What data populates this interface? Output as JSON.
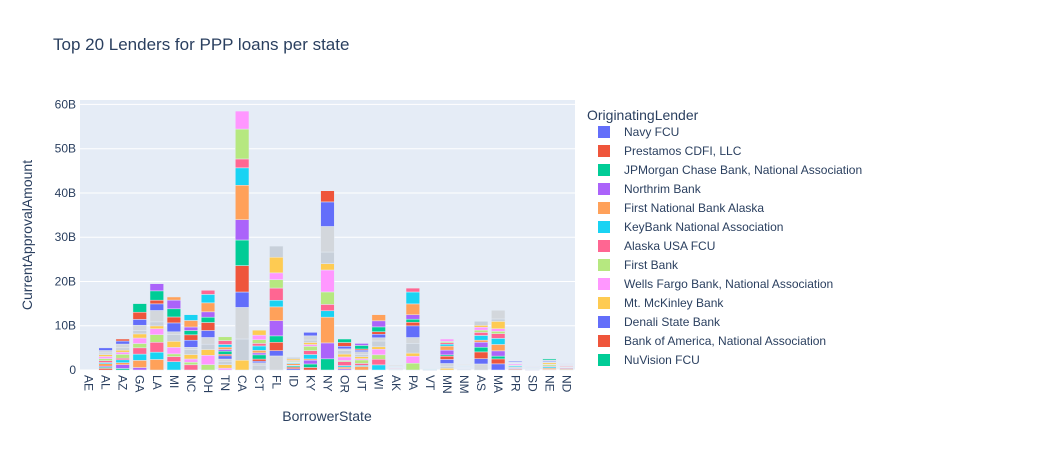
{
  "chart_data": {
    "type": "bar",
    "barmode": "stack",
    "title": "Top 20 Lenders for PPP loans per state",
    "xlabel": "BorrowerState",
    "ylabel": "CurrentApprovalAmount",
    "ylim": [
      0,
      61000000000
    ],
    "yticks": [
      0,
      10000000000,
      20000000000,
      30000000000,
      40000000000,
      50000000000,
      60000000000
    ],
    "ytick_labels": [
      "0",
      "10B",
      "20B",
      "30B",
      "40B",
      "50B",
      "60B"
    ],
    "grid": true,
    "legend": {
      "title": "OriginatingLender",
      "placement": "right"
    },
    "categories": [
      "AE",
      "AL",
      "AZ",
      "GA",
      "LA",
      "MI",
      "NC",
      "OH",
      "TN",
      "CA",
      "CT",
      "FL",
      "ID",
      "KY",
      "NY",
      "OR",
      "UT",
      "WI",
      "AK",
      "PA",
      "VT",
      "MN",
      "NM",
      "AS",
      "MA",
      "PR",
      "SD",
      "NE",
      "ND"
    ],
    "visible_tick_categories": [
      "AE",
      "AL",
      "AZ",
      "GA",
      "LA",
      "MI",
      "NC",
      "OH",
      "TN",
      "CA",
      "CT",
      "FL",
      "ID",
      "KY",
      "NY",
      "OR",
      "UT",
      "WI",
      "AK",
      "PA",
      "VT",
      "MN",
      "NM",
      "AS",
      "MA",
      "PR",
      "SD",
      "NE",
      "ND"
    ],
    "totals": [
      0,
      5000000000,
      7000000000,
      15000000000,
      19500000000,
      16500000000,
      12500000000,
      18000000000,
      7500000000,
      58500000000,
      9000000000,
      28000000000,
      3000000000,
      8500000000,
      40500000000,
      7000000000,
      6000000000,
      12500000000,
      1200000000,
      18500000000,
      400000000,
      7000000000,
      1200000000,
      11000000000,
      13500000000,
      2000000000,
      800000000,
      2500000000,
      1500000000
    ],
    "series": [
      {
        "name": "Navy FCU",
        "color": "#636efa"
      },
      {
        "name": "Prestamos CDFI, LLC",
        "color": "#EF553B"
      },
      {
        "name": "JPMorgan Chase Bank, National Association",
        "color": "#00cc96"
      },
      {
        "name": "Northrim Bank",
        "color": "#ab63fa"
      },
      {
        "name": "First National Bank Alaska",
        "color": "#FFA15A"
      },
      {
        "name": "KeyBank National Association",
        "color": "#19d3f3"
      },
      {
        "name": "Alaska USA FCU",
        "color": "#FF6692"
      },
      {
        "name": "First Bank",
        "color": "#B6E880"
      },
      {
        "name": "Wells Fargo Bank, National Association",
        "color": "#FF97FF"
      },
      {
        "name": "Mt. McKinley Bank",
        "color": "#FECB52"
      },
      {
        "name": "Denali State Bank",
        "color": "#636efa"
      },
      {
        "name": "Bank of America, National Association",
        "color": "#EF553B"
      },
      {
        "name": "NuVision FCU",
        "color": "#00cc96"
      }
    ]
  }
}
